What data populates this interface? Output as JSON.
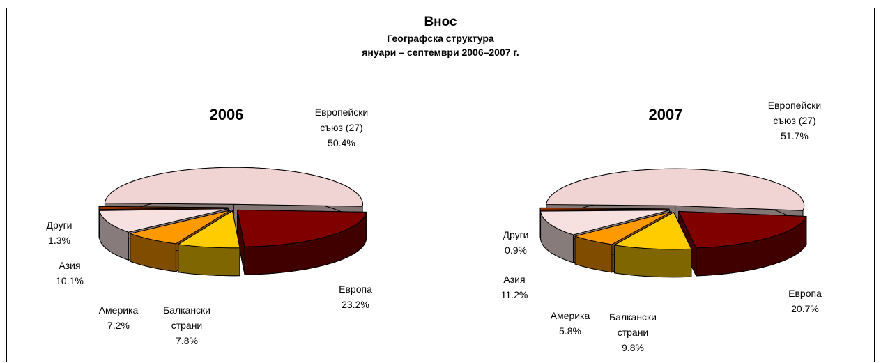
{
  "header": {
    "title": "Внос",
    "subtitle": "Географска структура",
    "period": "януари – септември 2006–2007 г."
  },
  "chart_data": [
    {
      "type": "pie",
      "title": "2006",
      "categories": [
        "Европейски съюз (27)",
        "Европа",
        "Балкански страни",
        "Америка",
        "Азия",
        "Други"
      ],
      "values": [
        50.4,
        23.2,
        7.8,
        7.2,
        10.1,
        1.3
      ],
      "value_labels": [
        "50.4%",
        "23.2%",
        "7.8%",
        "7.2%",
        "10.1%",
        "1.3%"
      ],
      "colors": [
        "#f0d4d4",
        "#800000",
        "#ffcc00",
        "#ff9900",
        "#f7e0e0",
        "#993300"
      ]
    },
    {
      "type": "pie",
      "title": "2007",
      "categories": [
        "Европейски съюз (27)",
        "Европа",
        "Балкански страни",
        "Америка",
        "Азия",
        "Други"
      ],
      "values": [
        51.7,
        20.7,
        9.8,
        5.8,
        11.2,
        0.9
      ],
      "value_labels": [
        "51.7%",
        "20.7%",
        "9.8%",
        "5.8%",
        "11.2%",
        "0.9%"
      ],
      "colors": [
        "#f0d4d4",
        "#800000",
        "#ffcc00",
        "#ff9900",
        "#f7e0e0",
        "#993300"
      ]
    }
  ]
}
